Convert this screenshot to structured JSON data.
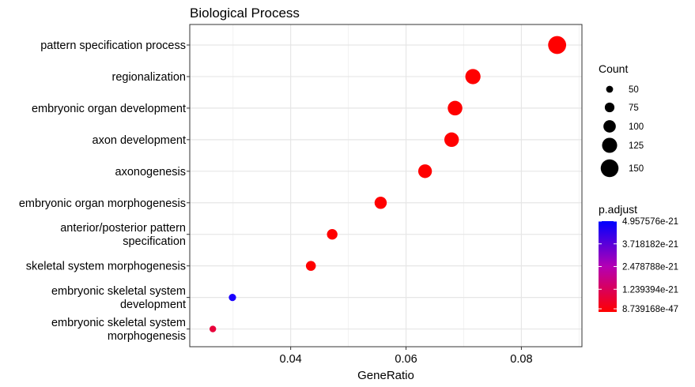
{
  "chart_data": {
    "type": "scatter",
    "title": "Biological Process",
    "xlabel": "GeneRatio",
    "ylabel": "",
    "xlim": [
      0.0225,
      0.0905
    ],
    "x_ticks": [
      0.04,
      0.06,
      0.08
    ],
    "x_tick_labels": [
      "0.04",
      "0.06",
      "0.08"
    ],
    "grid": true,
    "categories": [
      "pattern specification process",
      "regionalization",
      "embryonic organ development",
      "axon development",
      "axonogenesis",
      "embryonic organ morphogenesis",
      "anterior/posterior pattern\nspecification",
      "skeletal system morphogenesis",
      "embryonic skeletal system\ndevelopment",
      "embryonic skeletal system\nmorphogenesis"
    ],
    "points": [
      {
        "term": "pattern specification process",
        "gene_ratio": 0.0862,
        "count": 152,
        "color": "#ff0000"
      },
      {
        "term": "regionalization",
        "gene_ratio": 0.0716,
        "count": 126,
        "color": "#ff0000"
      },
      {
        "term": "embryonic organ development",
        "gene_ratio": 0.0685,
        "count": 121,
        "color": "#ff0000"
      },
      {
        "term": "axon development",
        "gene_ratio": 0.0679,
        "count": 120,
        "color": "#ff0000"
      },
      {
        "term": "axonogenesis",
        "gene_ratio": 0.0633,
        "count": 112,
        "color": "#ff0000"
      },
      {
        "term": "embryonic organ morphogenesis",
        "gene_ratio": 0.0556,
        "count": 98,
        "color": "#ff0000"
      },
      {
        "term": "anterior/posterior pattern specification",
        "gene_ratio": 0.0472,
        "count": 83,
        "color": "#ff0000"
      },
      {
        "term": "skeletal system morphogenesis",
        "gene_ratio": 0.0435,
        "count": 77,
        "color": "#ff0000"
      },
      {
        "term": "embryonic skeletal system development",
        "gene_ratio": 0.0299,
        "count": 53,
        "color": "#1a00ff"
      },
      {
        "term": "embryonic skeletal system morphogenesis",
        "gene_ratio": 0.0265,
        "count": 47,
        "color": "#e8003a"
      }
    ],
    "size_legend": {
      "title": "Count",
      "values": [
        50,
        75,
        100,
        125,
        150
      ],
      "labels": [
        "50",
        "75",
        "100",
        "125",
        "150"
      ]
    },
    "color_legend": {
      "title": "p.adjust",
      "labels": [
        "4.957576e-21",
        "3.718182e-21",
        "2.478788e-21",
        "1.239394e-21",
        "8.739168e-47"
      ],
      "high_color": "#0000ff",
      "low_color": "#ff0000"
    },
    "legend_position": "right"
  }
}
